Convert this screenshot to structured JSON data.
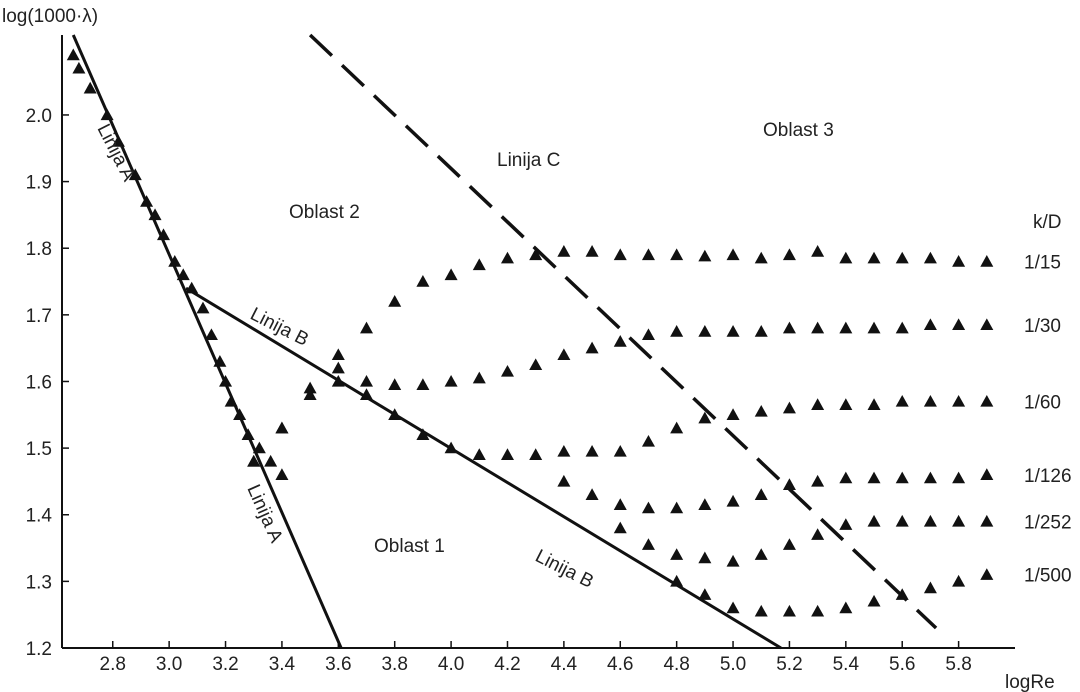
{
  "chart_data": {
    "type": "scatter",
    "title": "",
    "xlabel": "logRe",
    "ylabel": "log(1000·λ)",
    "xlim": [
      2.62,
      6.0
    ],
    "ylim": [
      1.2,
      2.12
    ],
    "x_ticks": [
      {
        "value": 2.8,
        "label": "2.8"
      },
      {
        "value": 3.0,
        "label": "3.0"
      },
      {
        "value": 3.2,
        "label": "3.2"
      },
      {
        "value": 3.4,
        "label": "3.4"
      },
      {
        "value": 3.6,
        "label": "3.6"
      },
      {
        "value": 3.8,
        "label": "3.8"
      },
      {
        "value": 4.0,
        "label": "4.0"
      },
      {
        "value": 4.2,
        "label": "4.2"
      },
      {
        "value": 4.4,
        "label": "4.4"
      },
      {
        "value": 4.6,
        "label": "4.6"
      },
      {
        "value": 4.8,
        "label": "4.8"
      },
      {
        "value": 5.0,
        "label": "5.0"
      },
      {
        "value": 5.2,
        "label": "5.2"
      },
      {
        "value": 5.4,
        "label": "5.4"
      },
      {
        "value": 5.6,
        "label": "5.6"
      },
      {
        "value": 5.8,
        "label": "5.8"
      }
    ],
    "y_ticks": [
      {
        "value": 1.2,
        "label": "1.2"
      },
      {
        "value": 1.3,
        "label": "1.3"
      },
      {
        "value": 1.4,
        "label": "1.4"
      },
      {
        "value": 1.5,
        "label": "1.5"
      },
      {
        "value": 1.6,
        "label": "1.6"
      },
      {
        "value": 1.7,
        "label": "1.7"
      },
      {
        "value": 1.8,
        "label": "1.8"
      },
      {
        "value": 1.9,
        "label": "1.9"
      },
      {
        "value": 2.0,
        "label": "2.0"
      }
    ],
    "grid": false,
    "legend_title": "k/D",
    "laminar_points": {
      "x": [
        2.66,
        2.68,
        2.72,
        2.78,
        2.82,
        2.88,
        2.92,
        2.95,
        2.98,
        3.02,
        3.05,
        3.08,
        3.12,
        3.15,
        3.18,
        3.2,
        3.22,
        3.25,
        3.28,
        3.32,
        3.36,
        3.4
      ],
      "y": [
        2.09,
        2.07,
        2.04,
        2.0,
        1.96,
        1.91,
        1.87,
        1.85,
        1.82,
        1.78,
        1.76,
        1.74,
        1.71,
        1.67,
        1.63,
        1.6,
        1.57,
        1.55,
        1.52,
        1.5,
        1.48,
        1.46
      ]
    },
    "series": [
      {
        "name": "1/15",
        "x": [
          3.3,
          3.4,
          3.5,
          3.6,
          3.7,
          3.8,
          3.9,
          4.0,
          4.1,
          4.2,
          4.3,
          4.4,
          4.5,
          4.6,
          4.7,
          4.8,
          4.9,
          5.0,
          5.1,
          5.2,
          5.3,
          5.4,
          5.5,
          5.6,
          5.7,
          5.8,
          5.9
        ],
        "y": [
          1.48,
          1.53,
          1.59,
          1.64,
          1.68,
          1.72,
          1.75,
          1.76,
          1.775,
          1.785,
          1.79,
          1.795,
          1.795,
          1.79,
          1.79,
          1.79,
          1.788,
          1.79,
          1.785,
          1.79,
          1.795,
          1.785,
          1.785,
          1.785,
          1.785,
          1.78,
          1.78
        ]
      },
      {
        "name": "1/30",
        "x": [
          3.3,
          3.4,
          3.5,
          3.6,
          3.7,
          3.8,
          3.9,
          4.0,
          4.1,
          4.2,
          4.3,
          4.4,
          4.5,
          4.6,
          4.7,
          4.8,
          4.9,
          5.0,
          5.1,
          5.2,
          5.3,
          5.4,
          5.5,
          5.6,
          5.7,
          5.8,
          5.9
        ],
        "y": [
          1.48,
          1.53,
          1.58,
          1.6,
          1.6,
          1.595,
          1.595,
          1.6,
          1.605,
          1.615,
          1.625,
          1.64,
          1.65,
          1.66,
          1.67,
          1.675,
          1.675,
          1.675,
          1.675,
          1.68,
          1.68,
          1.68,
          1.68,
          1.68,
          1.685,
          1.685,
          1.685
        ]
      },
      {
        "name": "1/60",
        "x": [
          3.6,
          3.7,
          3.8,
          3.9,
          4.0,
          4.1,
          4.2,
          4.3,
          4.4,
          4.5,
          4.6,
          4.7,
          4.8,
          4.9,
          5.0,
          5.1,
          5.2,
          5.3,
          5.4,
          5.5,
          5.6,
          5.7,
          5.8,
          5.9
        ],
        "y": [
          1.62,
          1.58,
          1.55,
          1.52,
          1.5,
          1.49,
          1.49,
          1.49,
          1.495,
          1.495,
          1.495,
          1.51,
          1.53,
          1.545,
          1.55,
          1.555,
          1.56,
          1.565,
          1.565,
          1.565,
          1.57,
          1.57,
          1.57,
          1.57
        ]
      },
      {
        "name": "1/126",
        "x": [
          4.4,
          4.5,
          4.6,
          4.7,
          4.8,
          4.9,
          5.0,
          5.1,
          5.2,
          5.3,
          5.4,
          5.5,
          5.6,
          5.7,
          5.8,
          5.9
        ],
        "y": [
          1.45,
          1.43,
          1.415,
          1.41,
          1.41,
          1.415,
          1.42,
          1.43,
          1.445,
          1.45,
          1.455,
          1.455,
          1.455,
          1.455,
          1.455,
          1.46
        ]
      },
      {
        "name": "1/252",
        "x": [
          4.6,
          4.7,
          4.8,
          4.9,
          5.0,
          5.1,
          5.2,
          5.3,
          5.4,
          5.5,
          5.6,
          5.7,
          5.8,
          5.9
        ],
        "y": [
          1.38,
          1.355,
          1.34,
          1.335,
          1.33,
          1.34,
          1.355,
          1.37,
          1.385,
          1.39,
          1.39,
          1.39,
          1.39,
          1.39
        ]
      },
      {
        "name": "1/500",
        "x": [
          4.8,
          4.9,
          5.0,
          5.1,
          5.2,
          5.3,
          5.4,
          5.5,
          5.6,
          5.7,
          5.8,
          5.9
        ],
        "y": [
          1.3,
          1.28,
          1.26,
          1.255,
          1.255,
          1.255,
          1.26,
          1.27,
          1.28,
          1.29,
          1.3,
          1.31
        ]
      }
    ],
    "lines": [
      {
        "name": "Linija A",
        "style": "solid",
        "x": [
          2.66,
          3.61
        ],
        "y": [
          2.12,
          1.2
        ]
      },
      {
        "name": "Linija B",
        "style": "solid",
        "x": [
          3.06,
          5.17
        ],
        "y": [
          1.74,
          1.2
        ]
      },
      {
        "name": "Linija C",
        "style": "dashed",
        "x": [
          3.5,
          5.72
        ],
        "y": [
          2.12,
          1.23
        ]
      }
    ],
    "annotations": {
      "oblast1": "Oblast 1",
      "oblast2": "Oblast 2",
      "oblast3": "Oblast 3",
      "linija_a_upper": "Linija A",
      "linija_a_lower": "Linija A",
      "linija_b_upper": "Linija B",
      "linija_b_lower": "Linija B",
      "linija_c": "Linija C"
    }
  }
}
